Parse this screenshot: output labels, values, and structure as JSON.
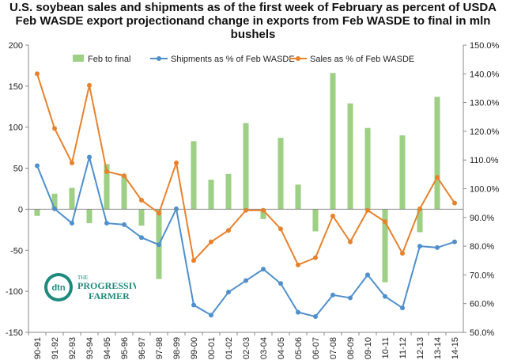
{
  "chart_data": {
    "type": "bar+line",
    "title": "U.S. soybean sales and shipments as of the first week of February as percent of USDA Feb WASDE export projectionand change in exports from Feb WASDE to final in mln bushels",
    "categories": [
      "90-91",
      "91-92",
      "92-93",
      "93-94",
      "94-95",
      "95-96",
      "96-97",
      "97-98",
      "98-99",
      "99-00",
      "00-01",
      "01-02",
      "02-03",
      "03-04",
      "04-05",
      "05-06",
      "06-07",
      "07-08",
      "08-09",
      "09-10",
      "10-11",
      "11-12",
      "12-13",
      "13-14",
      "14-15"
    ],
    "y_left": {
      "min": -150,
      "max": 200,
      "step": 50,
      "ticks": [
        "200",
        "150",
        "100",
        "50",
        "0",
        "-50",
        "-100",
        "-150"
      ]
    },
    "y_right": {
      "min": 50,
      "max": 150,
      "step": 10,
      "ticks": [
        "150.0%",
        "140.0%",
        "130.0%",
        "120.0%",
        "110.0%",
        "100.0%",
        "90.0%",
        "80.0%",
        "70.0%",
        "60.0%",
        "50.0%"
      ]
    },
    "legend": [
      "Feb to final",
      "Shipments as % of Feb WASDE",
      "Sales as % of Feb WASDE"
    ],
    "series": [
      {
        "name": "Feb to final",
        "type": "bar",
        "axis": "left",
        "color": "#9dcf84",
        "values": [
          -8,
          19,
          26,
          -17,
          55,
          41,
          -20,
          -85,
          0,
          83,
          36,
          43,
          105,
          -12,
          87,
          30,
          -27,
          166,
          129,
          99,
          -89,
          90,
          -28,
          137,
          null
        ]
      },
      {
        "name": "Shipments as % of Feb WASDE",
        "type": "line",
        "axis": "right",
        "color": "#4f8fcd",
        "values": [
          108,
          93,
          88,
          111,
          88,
          87.5,
          83,
          80.5,
          93,
          59.5,
          56,
          64,
          68,
          72,
          67,
          57,
          55.5,
          63,
          62,
          70,
          62.5,
          58.5,
          80,
          79.5,
          81.5
        ]
      },
      {
        "name": "Sales as % of Feb WASDE",
        "type": "line",
        "axis": "right",
        "color": "#e8812c",
        "values": [
          140,
          121,
          109,
          136,
          106,
          104.5,
          96,
          91.5,
          109,
          75,
          81.5,
          85.5,
          92.5,
          92.5,
          86,
          73.5,
          76,
          90.5,
          81.5,
          92.5,
          88.5,
          77.5,
          93,
          104,
          95
        ]
      }
    ],
    "grid": false,
    "legend_position": "top"
  },
  "logo": {
    "text_small": "THE",
    "text_main": "PROGRESSIVE",
    "text_sub": "FARMER",
    "badge": "dtn"
  }
}
